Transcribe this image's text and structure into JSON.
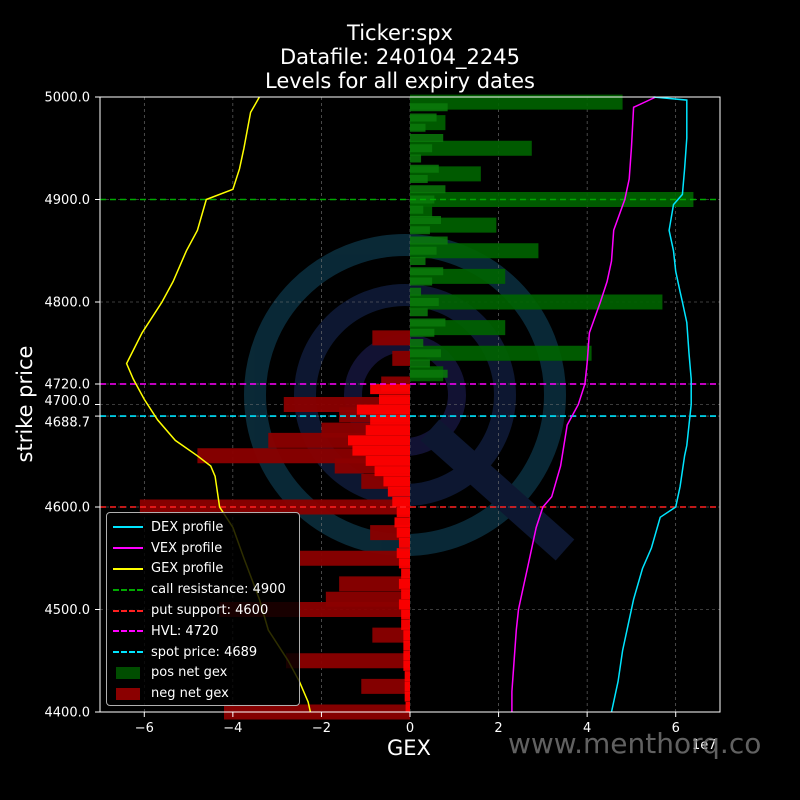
{
  "title": {
    "line1": "Ticker:spx",
    "line2": "Datafile: 240104_2245",
    "line3": "Levels for all expiry dates"
  },
  "watermark": "www.menthorq.co",
  "chart_data": {
    "type": "bar",
    "orientation": "horizontal",
    "xlabel": "GEX",
    "ylabel": "strike price",
    "x_scale_label": "1e7",
    "xlim": [
      -7,
      7
    ],
    "ylim": [
      4400,
      5000
    ],
    "x_ticks": [
      -6,
      -4,
      -2,
      0,
      2,
      4,
      6
    ],
    "x_tick_labels": [
      "−6",
      "−4",
      "−2",
      "0",
      "2",
      "4",
      "6"
    ],
    "y_ticks": [
      4400,
      4500,
      4600,
      4688.7,
      4700,
      4720,
      4800,
      4900,
      5000
    ],
    "y_tick_labels": [
      "4400.0",
      "4500.0",
      "4600.0",
      "4688.7",
      "4700.0",
      "4720.0",
      "4800.0",
      "4900.0",
      "5000.0"
    ],
    "grid": true,
    "legend_position": "lower-left",
    "colors": {
      "dex": "#00e5ff",
      "vex": "#ff00ff",
      "gex": "#ffff00",
      "call_resistance": "#009900",
      "put_support": "#ff0000",
      "hvl": "#ff00ff",
      "spot": "#00e5ff",
      "pos_gex": "#006400",
      "neg_gex": "#8b0000",
      "neg_gex_bright": "#ff0000"
    },
    "legend": [
      {
        "label": "DEX profile",
        "kind": "line",
        "color": "#00e5ff"
      },
      {
        "label": "VEX profile",
        "kind": "line",
        "color": "#ff00ff"
      },
      {
        "label": "GEX profile",
        "kind": "line",
        "color": "#ffff00"
      },
      {
        "label": "call resistance: 4900",
        "kind": "dash",
        "color": "#00aa00"
      },
      {
        "label": "put support: 4600",
        "kind": "dash",
        "color": "#ff2020"
      },
      {
        "label": "HVL: 4720",
        "kind": "dash",
        "color": "#ff00ff"
      },
      {
        "label": "spot price: 4689",
        "kind": "dash",
        "color": "#00e5ff"
      },
      {
        "label": "pos net gex",
        "kind": "box",
        "color": "#004d00"
      },
      {
        "label": "neg net gex",
        "kind": "box",
        "color": "#8b0000"
      }
    ],
    "levels": [
      {
        "name": "call resistance",
        "value": 4900,
        "color": "#00aa00"
      },
      {
        "name": "put support",
        "value": 4600,
        "color": "#ff2020"
      },
      {
        "name": "HVL",
        "value": 4720,
        "color": "#ff00ff"
      },
      {
        "name": "spot price",
        "value": 4688.7,
        "color": "#00e5ff"
      }
    ],
    "pos_net_gex": [
      {
        "strike": 4995,
        "gex": 4.8
      },
      {
        "strike": 4975,
        "gex": 0.8
      },
      {
        "strike": 4950,
        "gex": 2.75
      },
      {
        "strike": 4925,
        "gex": 1.6
      },
      {
        "strike": 4900,
        "gex": 6.4
      },
      {
        "strike": 4890,
        "gex": 0.5
      },
      {
        "strike": 4875,
        "gex": 1.95
      },
      {
        "strike": 4850,
        "gex": 2.9
      },
      {
        "strike": 4825,
        "gex": 2.15
      },
      {
        "strike": 4800,
        "gex": 5.7
      },
      {
        "strike": 4775,
        "gex": 2.15
      },
      {
        "strike": 4750,
        "gex": 4.1
      },
      {
        "strike": 4730,
        "gex": 0.75
      }
    ],
    "neg_net_gex": [
      {
        "strike": 4765,
        "gex": -0.85
      },
      {
        "strike": 4745,
        "gex": -0.4
      },
      {
        "strike": 4720,
        "gex": -0.65
      },
      {
        "strike": 4700,
        "gex": -2.85
      },
      {
        "strike": 4690,
        "gex": -1.6
      },
      {
        "strike": 4675,
        "gex": -2.0
      },
      {
        "strike": 4665,
        "gex": -3.2
      },
      {
        "strike": 4650,
        "gex": -4.8
      },
      {
        "strike": 4640,
        "gex": -1.7
      },
      {
        "strike": 4625,
        "gex": -1.1
      },
      {
        "strike": 4600,
        "gex": -6.1
      },
      {
        "strike": 4575,
        "gex": -0.9
      },
      {
        "strike": 4550,
        "gex": -2.5
      },
      {
        "strike": 4525,
        "gex": -1.6
      },
      {
        "strike": 4510,
        "gex": -1.9
      },
      {
        "strike": 4500,
        "gex": -4.3
      },
      {
        "strike": 4475,
        "gex": -0.85
      },
      {
        "strike": 4450,
        "gex": -2.8
      },
      {
        "strike": 4425,
        "gex": -1.1
      },
      {
        "strike": 4400,
        "gex": -4.2
      }
    ],
    "series": [
      {
        "name": "GEX profile",
        "points": [
          [
            -3.4,
            5000
          ],
          [
            -3.6,
            4985
          ],
          [
            -3.75,
            4950
          ],
          [
            -3.85,
            4930
          ],
          [
            -4.0,
            4910
          ],
          [
            -4.6,
            4900
          ],
          [
            -4.8,
            4870
          ],
          [
            -5.05,
            4850
          ],
          [
            -5.35,
            4820
          ],
          [
            -5.6,
            4800
          ],
          [
            -6.05,
            4770
          ],
          [
            -6.4,
            4740
          ],
          [
            -6.25,
            4725
          ],
          [
            -6.0,
            4705
          ],
          [
            -5.7,
            4685
          ],
          [
            -5.3,
            4665
          ],
          [
            -4.8,
            4650
          ],
          [
            -4.5,
            4640
          ],
          [
            -4.4,
            4630
          ],
          [
            -4.3,
            4600
          ],
          [
            -4.0,
            4580
          ],
          [
            -3.75,
            4550
          ],
          [
            -3.4,
            4510
          ],
          [
            -3.2,
            4480
          ],
          [
            -2.75,
            4450
          ],
          [
            -2.5,
            4430
          ],
          [
            -2.3,
            4410
          ],
          [
            -2.25,
            4400
          ]
        ]
      },
      {
        "name": "VEX profile",
        "points": [
          [
            5.55,
            5000
          ],
          [
            5.05,
            4990
          ],
          [
            5.0,
            4950
          ],
          [
            4.95,
            4920
          ],
          [
            4.85,
            4900
          ],
          [
            4.6,
            4870
          ],
          [
            4.55,
            4840
          ],
          [
            4.45,
            4820
          ],
          [
            4.3,
            4800
          ],
          [
            4.05,
            4770
          ],
          [
            4.0,
            4740
          ],
          [
            3.95,
            4720
          ],
          [
            3.8,
            4700
          ],
          [
            3.55,
            4680
          ],
          [
            3.4,
            4640
          ],
          [
            3.2,
            4610
          ],
          [
            3.0,
            4600
          ],
          [
            2.85,
            4580
          ],
          [
            2.65,
            4540
          ],
          [
            2.55,
            4520
          ],
          [
            2.45,
            4500
          ],
          [
            2.4,
            4480
          ],
          [
            2.35,
            4450
          ],
          [
            2.3,
            4420
          ],
          [
            2.3,
            4400
          ]
        ]
      },
      {
        "name": "DEX profile",
        "points": [
          [
            5.5,
            5000
          ],
          [
            6.25,
            4997
          ],
          [
            6.25,
            4960
          ],
          [
            6.2,
            4930
          ],
          [
            6.15,
            4905
          ],
          [
            5.95,
            4895
          ],
          [
            5.85,
            4870
          ],
          [
            5.95,
            4850
          ],
          [
            6.0,
            4830
          ],
          [
            6.1,
            4810
          ],
          [
            6.15,
            4800
          ],
          [
            6.25,
            4780
          ],
          [
            6.3,
            4750
          ],
          [
            6.35,
            4725
          ],
          [
            6.35,
            4700
          ],
          [
            6.3,
            4680
          ],
          [
            6.25,
            4660
          ],
          [
            6.2,
            4650
          ],
          [
            6.1,
            4620
          ],
          [
            6.0,
            4600
          ],
          [
            5.65,
            4590
          ],
          [
            5.45,
            4560
          ],
          [
            5.25,
            4540
          ],
          [
            5.05,
            4510
          ],
          [
            4.95,
            4490
          ],
          [
            4.8,
            4460
          ],
          [
            4.7,
            4430
          ],
          [
            4.6,
            4410
          ],
          [
            4.55,
            4400
          ]
        ]
      }
    ]
  }
}
